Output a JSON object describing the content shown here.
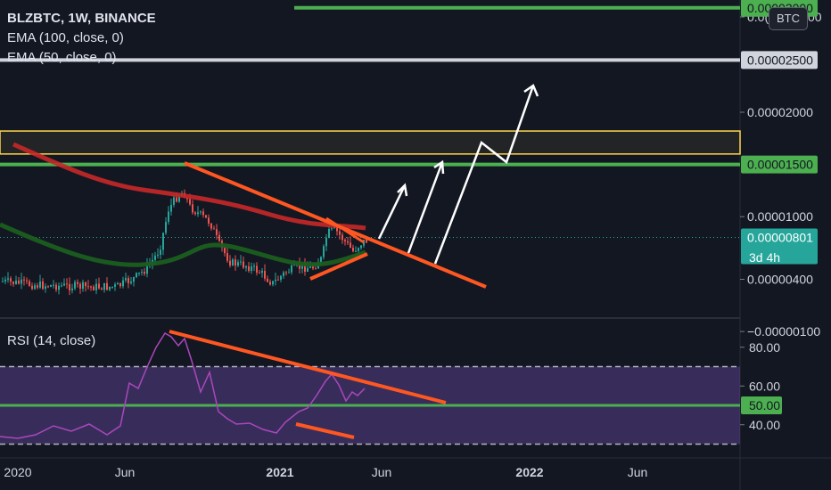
{
  "header": {
    "symbol": "BLZBTC, 1W, BINANCE",
    "ema100": "EMA (100, close, 0)",
    "ema50": "EMA (50, close, 0)",
    "currency_button": "BTC"
  },
  "price_axis": {
    "top_partial": "0.0(",
    "top_suffix": "00",
    "ticks": [
      "0.00002000",
      "0.00001000",
      "0.00000400",
      "−0.00000100"
    ],
    "labels": [
      {
        "text": "0.00003000",
        "bg": "#4caf50",
        "fg": "#131722"
      },
      {
        "text": "0.00002500",
        "bg": "#d1d4dc",
        "fg": "#131722"
      },
      {
        "text": "0.00001500",
        "bg": "#4caf50",
        "fg": "#131722"
      },
      {
        "text": "0.00000801",
        "bg": "#26a69a",
        "fg": "#ffffff"
      }
    ],
    "countdown": "3d 4h"
  },
  "rsi": {
    "title": "RSI (14, close)",
    "ticks": [
      "80.00",
      "60.00",
      "40.00"
    ],
    "label_50": "50.00"
  },
  "time_axis": {
    "labels": [
      "2020",
      "Jun",
      "2021",
      "Jun",
      "2022",
      "Jun"
    ]
  },
  "colors": {
    "background": "#131722",
    "up": "#26a69a",
    "down": "#ef5350",
    "ema100": "#c62828",
    "ema50": "#1b5e20",
    "trendline": "#ff5722",
    "green_level": "#4caf50",
    "grey_level": "#d1d4dc",
    "zone_border": "#ffd54f",
    "rsi_line": "#ab47bc",
    "rsi_band": "#7e57c2"
  },
  "chart_data": {
    "type": "candlestick",
    "symbol": "BLZBTC",
    "interval": "1W",
    "exchange": "BINANCE",
    "horizontal_levels": [
      3e-05,
      2.5e-05,
      1.5e-05
    ],
    "zone": [
      1.6e-05,
      1.82e-05
    ],
    "last_price": 8.01e-06,
    "rsi_period": 14,
    "rsi_levels": [
      70,
      50,
      30
    ]
  }
}
